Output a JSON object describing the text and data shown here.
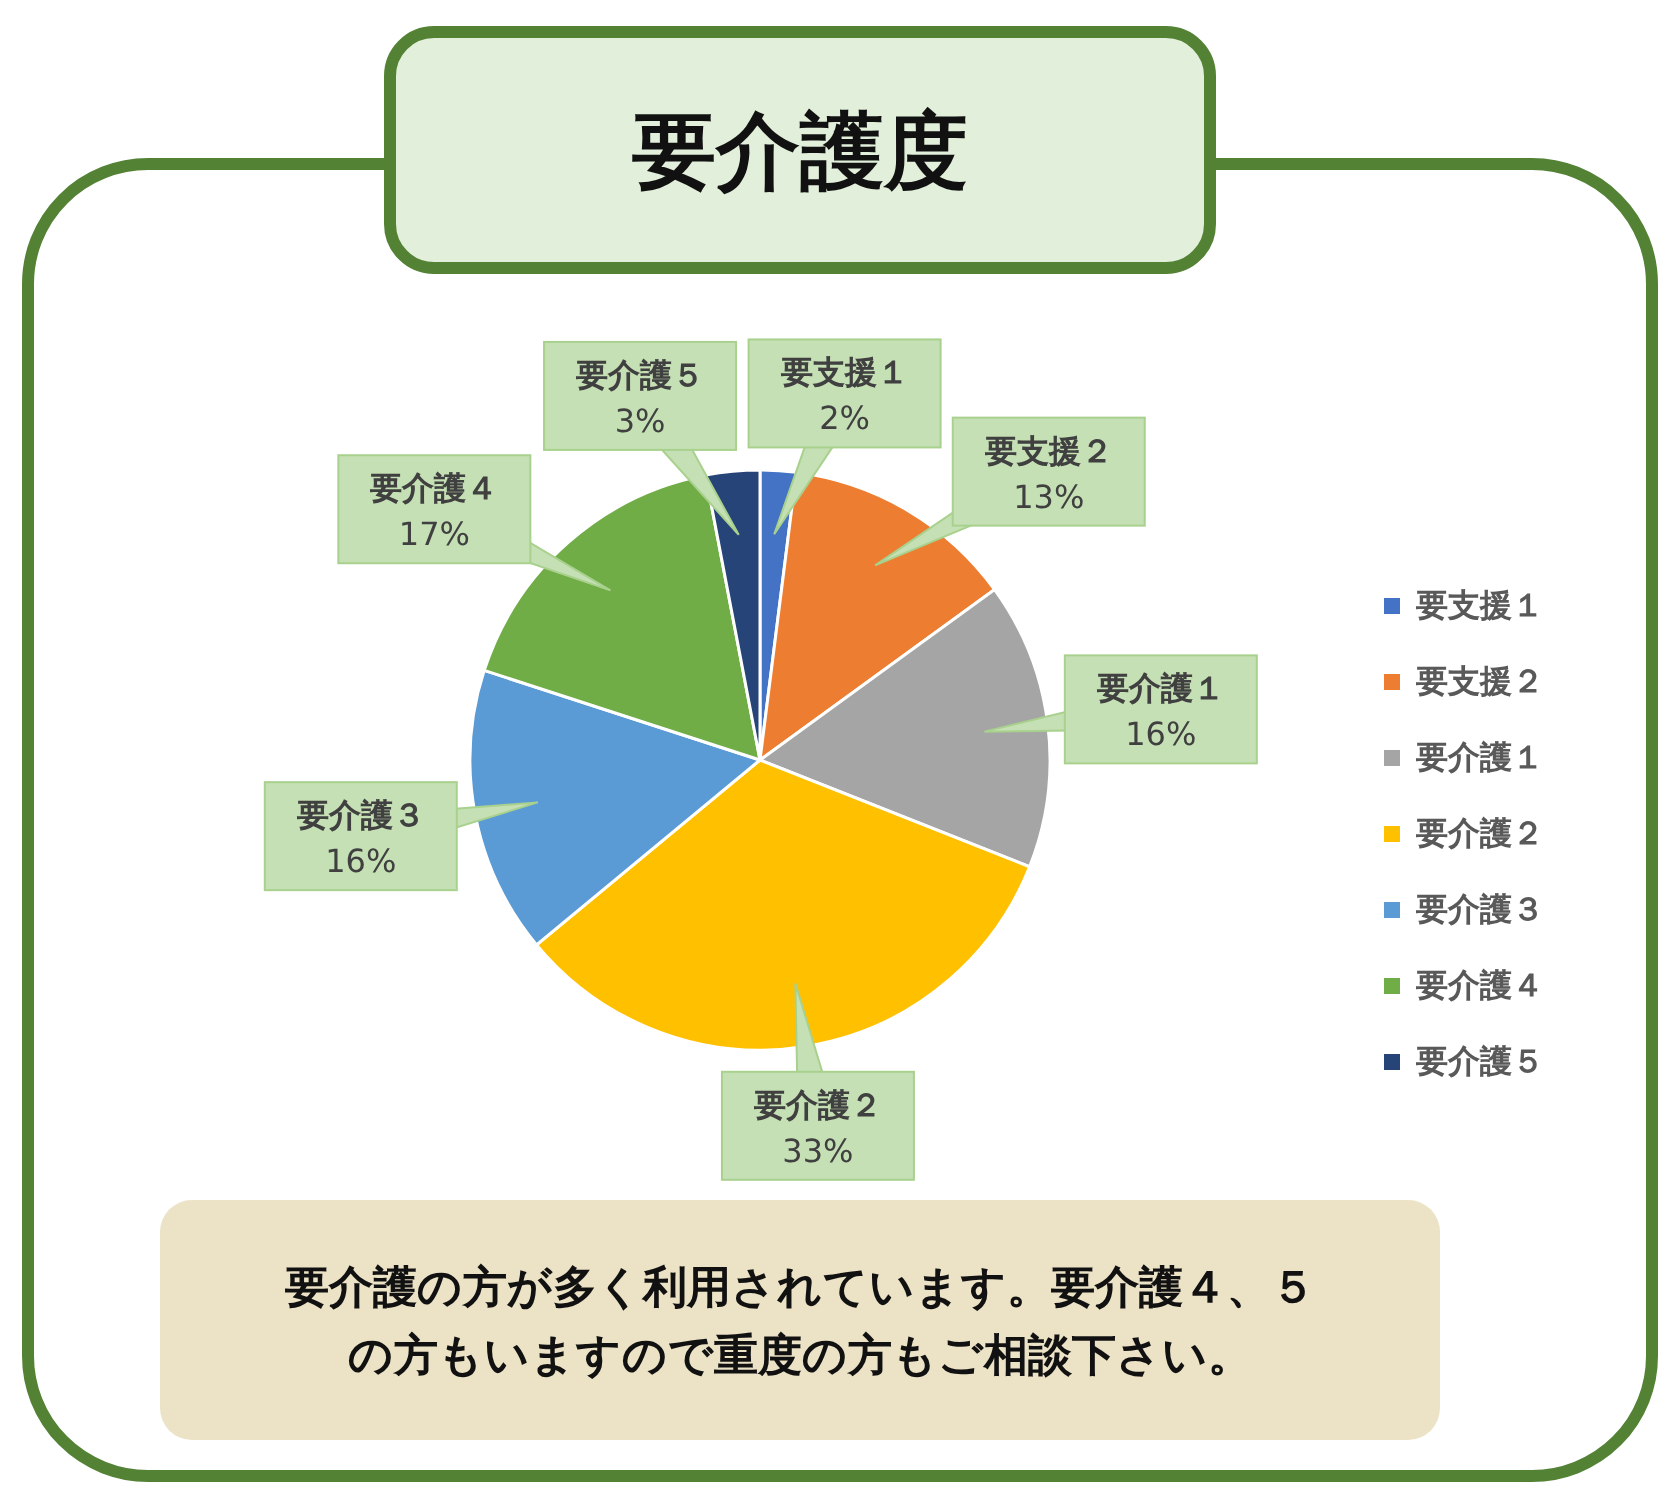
{
  "chart_data": {
    "type": "pie",
    "title": "要介護度",
    "categories": [
      "要支援１",
      "要支援２",
      "要介護１",
      "要介護２",
      "要介護３",
      "要介護４",
      "要介護５"
    ],
    "values": [
      2,
      13,
      16,
      33,
      16,
      17,
      3
    ],
    "colors": [
      "#4472c4",
      "#ed7d31",
      "#a5a5a5",
      "#ffc000",
      "#5b9bd5",
      "#70ad47",
      "#264478"
    ],
    "value_labels": [
      "2%",
      "13%",
      "16%",
      "33%",
      "16%",
      "17%",
      "3%"
    ],
    "legend": "right",
    "annotations": [
      "要介護の方が多く利用されています。要介護４、５の方もいますので重度の方もご相談下さい。"
    ]
  }
}
